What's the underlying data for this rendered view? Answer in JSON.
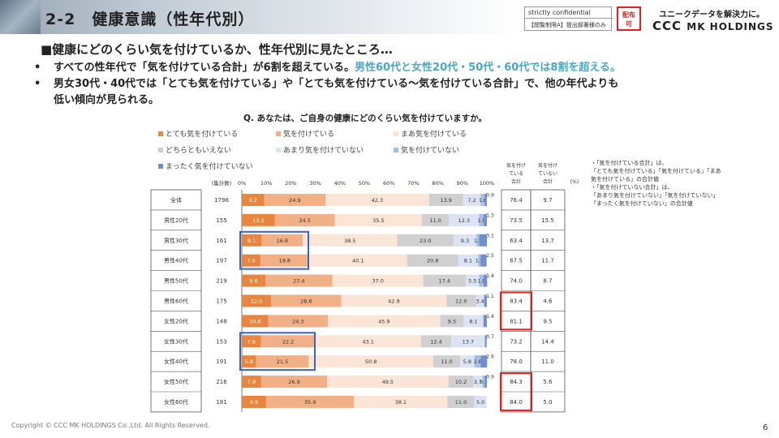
{
  "header": {
    "title": "2-2　健康意識（性年代別）",
    "confidential_en": "strictly confidential",
    "confidential_jp": "【閲覧制限A】提出部署様のみ",
    "distribution_badge_line1": "配布",
    "distribution_badge_line2": "可",
    "tagline": "ユニークデータを解決力に。",
    "logo_main": "CCC",
    "logo_sub": "MK HOLDINGS"
  },
  "subtitle": "■健康にどのくらい気を付けているか、性年代別に見たところ…",
  "bullets": [
    {
      "dot": "•",
      "pre": "すべての性年代で「気を付けている合計」が6割を超えている。",
      "highlight": "男性60代と女性20代・50代・60代では8割を超える。",
      "post": ""
    },
    {
      "dot": "•",
      "pre": "男女30代・40代では「とても気を付けている」や「とても気を付けている～気を付けている合計」で、他の年代よりも",
      "highlight": "",
      "post": ""
    },
    {
      "dot": "",
      "pre": "低い傾向が見られる。",
      "highlight": "",
      "post": ""
    }
  ],
  "question": "Q. あなたは、ご自身の健康にどのくらい気を付けていますか。",
  "notes": [
    "・「気を付けている合計」は、",
    "「とても気を付けている」「気を付けている」「まあ",
    "気を付けている」の合計値",
    "・「気を付けていない合計」は、",
    "「あまり気を付けていない」「気を付けていない」",
    "「まったく気を付けていない」の合計値"
  ],
  "footer": "Copyright © CCC MK HOLDINGS Co.,Ltd. All Rights Reserved.",
  "page_number": "6",
  "colors": {
    "s1": "#e8853f",
    "s2": "#f1b085",
    "s3": "#fbe5d6",
    "s4": "#d0d0d0",
    "s5": "#dce4f3",
    "s6": "#a7bde3",
    "s7": "#6f8fce",
    "blue_box": "#3a64c8",
    "red_box": "#e02020"
  },
  "chart_data": {
    "type": "bar",
    "orientation": "horizontal-stacked-100",
    "xlim": [
      0,
      100
    ],
    "x_ticks": [
      "0%",
      "10%",
      "20%",
      "30%",
      "40%",
      "50%",
      "60%",
      "70%",
      "80%",
      "90%",
      "100%"
    ],
    "count_header": "(集計数)",
    "categories": [
      "全体",
      "男性20代",
      "男性30代",
      "男性40代",
      "男性50代",
      "男性60代",
      "女性20代",
      "女性30代",
      "女性40代",
      "女性50代",
      "女性60代"
    ],
    "counts": [
      "1796",
      "155",
      "161",
      "197",
      "219",
      "175",
      "148",
      "153",
      "191",
      "216",
      "181"
    ],
    "series": [
      {
        "name": "とても気を付けている",
        "values": [
          9.2,
          13.5,
          8.1,
          7.6,
          9.6,
          12.0,
          10.8,
          7.8,
          5.8,
          7.9,
          9.9
        ]
      },
      {
        "name": "気を付けている",
        "values": [
          24.9,
          24.5,
          16.8,
          19.8,
          27.4,
          28.6,
          24.3,
          22.2,
          21.5,
          26.9,
          35.9
        ]
      },
      {
        "name": "まあ気を付けている",
        "values": [
          42.3,
          35.5,
          38.5,
          40.1,
          37.0,
          42.9,
          45.9,
          43.1,
          50.8,
          49.5,
          38.1
        ]
      },
      {
        "name": "どちらともいえない",
        "values": [
          13.9,
          11.0,
          23.0,
          20.8,
          17.4,
          12.0,
          9.5,
          12.4,
          11.0,
          10.2,
          11.0
        ]
      },
      {
        "name": "あまり気を付けていない",
        "values": [
          7.2,
          12.3,
          9.3,
          8.1,
          5.5,
          3.4,
          8.1,
          13.7,
          5.8,
          3.7,
          5.0
        ]
      },
      {
        "name": "気を付けていない",
        "values": [
          1.6,
          1.9,
          1.2,
          1.0,
          1.8,
          0.0,
          0.0,
          0.0,
          2.6,
          0.9,
          0.0
        ]
      },
      {
        "name": "まったく気を付けていない",
        "values": [
          0.9,
          1.3,
          3.1,
          2.5,
          1.4,
          1.1,
          1.4,
          0.7,
          2.6,
          0.9,
          0.0
        ]
      }
    ],
    "value_labels": [
      [
        "9.2",
        "24.9",
        "42.3",
        "13.9",
        "7.2",
        "1.6",
        "0.9"
      ],
      [
        "13.5",
        "24.5",
        "35.5",
        "11.0",
        "12.3",
        "1.9",
        "1.3"
      ],
      [
        "8.1",
        "16.8",
        "38.5",
        "23.0",
        "9.3",
        "1.2",
        "3.1"
      ],
      [
        "7.6",
        "19.8",
        "40.1",
        "20.8",
        "8.1",
        "1.0",
        "2.5"
      ],
      [
        "9.6",
        "27.4",
        "37.0",
        "17.4",
        "5.5",
        "1.8",
        "1.4"
      ],
      [
        "12.0",
        "28.6",
        "42.9",
        "12.0",
        "3.4",
        "",
        "1.1"
      ],
      [
        "10.8",
        "24.3",
        "45.9",
        "9.5",
        "8.1",
        "",
        "1.4"
      ],
      [
        "7.8",
        "22.2",
        "43.1",
        "12.4",
        "13.7",
        "",
        "0.7"
      ],
      [
        "5.8",
        "21.5",
        "50.8",
        "11.0",
        "5.8",
        "2.6",
        "2.6"
      ],
      [
        "7.9",
        "26.9",
        "49.5",
        "10.2",
        "3.7",
        "0.9",
        "0.9"
      ],
      [
        "9.9",
        "35.9",
        "38.1",
        "11.0",
        "5.0",
        "",
        ""
      ]
    ],
    "total_headers": {
      "careful": "気を付けている合計",
      "not_careful": "気を付けていない合計",
      "unit": "(%)"
    },
    "careful_total": [
      "76.4",
      "73.5",
      "63.4",
      "67.5",
      "74.0",
      "83.4",
      "81.1",
      "73.2",
      "78.0",
      "84.3",
      "84.0"
    ],
    "not_careful_total": [
      "9.7",
      "15.5",
      "13.7",
      "11.7",
      "8.7",
      "4.6",
      "9.5",
      "14.4",
      "11.0",
      "5.6",
      "5.0"
    ],
    "blue_highlight_rows": [
      [
        2,
        3
      ],
      [
        7,
        8
      ]
    ],
    "red_highlight_rows": [
      [
        5,
        6
      ],
      [
        9,
        10
      ]
    ]
  }
}
